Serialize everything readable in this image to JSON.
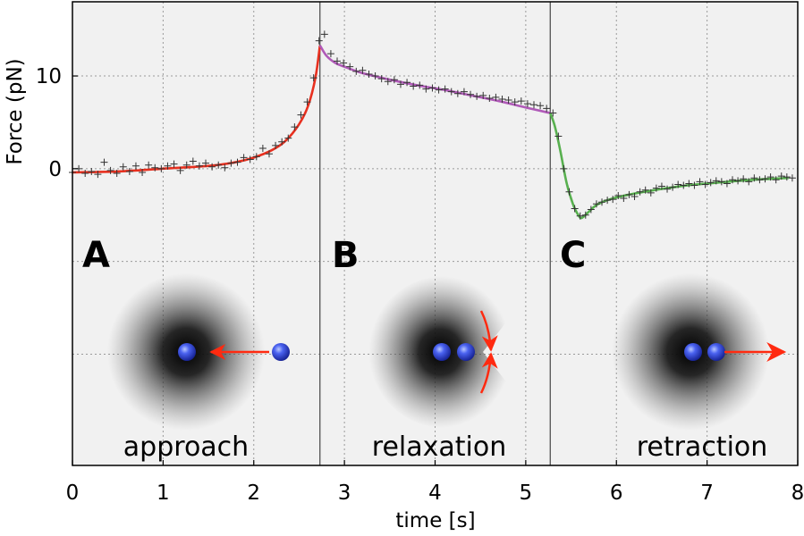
{
  "chart_data": {
    "type": "line",
    "xlabel": "time [s]",
    "ylabel": "Force (pN)",
    "xlim": [
      0,
      8
    ],
    "ylim": [
      -32,
      18
    ],
    "x_ticks": [
      0,
      1,
      2,
      3,
      4,
      5,
      6,
      7,
      8
    ],
    "y_ticks": [
      0,
      10
    ],
    "grid": true,
    "phase_boundaries": [
      2.73,
      5.27
    ],
    "panels": [
      {
        "letter": "A",
        "caption": "approach"
      },
      {
        "letter": "B",
        "caption": "relaxation"
      },
      {
        "letter": "C",
        "caption": "retraction"
      }
    ],
    "series": [
      {
        "style": "markers",
        "marker": "+",
        "color": "#333333",
        "x": [
          0.0,
          0.07,
          0.14,
          0.21,
          0.28,
          0.35,
          0.42,
          0.49,
          0.56,
          0.63,
          0.7,
          0.77,
          0.84,
          0.91,
          0.98,
          1.05,
          1.12,
          1.19,
          1.26,
          1.33,
          1.4,
          1.47,
          1.54,
          1.61,
          1.68,
          1.75,
          1.82,
          1.89,
          1.96,
          2.03,
          2.1,
          2.17,
          2.24,
          2.31,
          2.38,
          2.45,
          2.52,
          2.59,
          2.66,
          2.72,
          2.78,
          2.85,
          2.92,
          2.99,
          3.06,
          3.13,
          3.2,
          3.27,
          3.34,
          3.41,
          3.48,
          3.55,
          3.62,
          3.69,
          3.76,
          3.83,
          3.9,
          3.97,
          4.04,
          4.11,
          4.18,
          4.25,
          4.32,
          4.39,
          4.46,
          4.53,
          4.6,
          4.67,
          4.74,
          4.81,
          4.88,
          4.95,
          5.02,
          5.09,
          5.16,
          5.23,
          5.3,
          5.36,
          5.42,
          5.48,
          5.54,
          5.6,
          5.66,
          5.72,
          5.78,
          5.84,
          5.9,
          5.96,
          6.02,
          6.08,
          6.14,
          6.2,
          6.26,
          6.32,
          6.38,
          6.44,
          6.5,
          6.56,
          6.62,
          6.68,
          6.74,
          6.8,
          6.86,
          6.92,
          6.98,
          7.04,
          7.1,
          7.16,
          7.22,
          7.28,
          7.34,
          7.4,
          7.46,
          7.52,
          7.58,
          7.64,
          7.7,
          7.76,
          7.82,
          7.88,
          7.94
        ],
        "y": [
          -0.4,
          0.0,
          -0.5,
          -0.3,
          -0.6,
          0.7,
          -0.2,
          -0.5,
          0.2,
          -0.3,
          0.3,
          -0.4,
          0.4,
          0.1,
          0.0,
          0.3,
          0.5,
          -0.2,
          0.4,
          0.8,
          0.3,
          0.6,
          0.2,
          0.4,
          0.1,
          0.6,
          0.7,
          1.2,
          1.0,
          1.3,
          2.2,
          1.6,
          2.5,
          2.9,
          3.3,
          4.5,
          5.8,
          7.2,
          9.8,
          13.8,
          14.5,
          12.4,
          11.6,
          11.4,
          11.0,
          10.5,
          10.6,
          10.2,
          10.0,
          9.7,
          9.4,
          9.6,
          9.1,
          9.3,
          8.9,
          9.0,
          8.6,
          8.7,
          8.5,
          8.6,
          8.3,
          8.1,
          8.3,
          8.0,
          7.8,
          7.9,
          7.6,
          7.7,
          7.5,
          7.4,
          7.2,
          7.3,
          7.0,
          6.9,
          6.8,
          6.5,
          6.0,
          3.5,
          0.0,
          -2.5,
          -4.3,
          -5.1,
          -5.0,
          -4.4,
          -3.8,
          -3.6,
          -3.4,
          -3.3,
          -2.9,
          -3.2,
          -2.8,
          -3.0,
          -2.5,
          -2.3,
          -2.6,
          -2.1,
          -1.9,
          -2.2,
          -2.0,
          -1.7,
          -1.8,
          -1.6,
          -1.8,
          -1.4,
          -1.7,
          -1.5,
          -1.3,
          -1.4,
          -1.6,
          -1.2,
          -1.3,
          -1.1,
          -1.4,
          -1.0,
          -1.2,
          -1.1,
          -0.9,
          -1.2,
          -0.8,
          -0.9,
          -1.0
        ]
      },
      {
        "style": "line",
        "color": "#e8301f",
        "x": [
          0.0,
          0.5,
          1.0,
          1.5,
          1.8,
          2.0,
          2.2,
          2.35,
          2.5,
          2.6,
          2.68,
          2.73
        ],
        "y": [
          -0.4,
          -0.3,
          0.0,
          0.3,
          0.7,
          1.2,
          2.0,
          3.0,
          4.8,
          6.8,
          9.8,
          13.3
        ]
      },
      {
        "style": "line",
        "color": "#b05ab8",
        "x": [
          2.73,
          2.8,
          2.9,
          3.0,
          3.2,
          3.5,
          3.8,
          4.1,
          4.4,
          4.7,
          5.0,
          5.27
        ],
        "y": [
          13.3,
          12.2,
          11.4,
          11.0,
          10.3,
          9.6,
          9.0,
          8.5,
          7.9,
          7.3,
          6.6,
          6.0
        ]
      },
      {
        "style": "line",
        "color": "#58b04f",
        "x": [
          5.27,
          5.32,
          5.38,
          5.45,
          5.52,
          5.58,
          5.62,
          5.7,
          5.8,
          6.0,
          6.3,
          6.7,
          7.0,
          7.5,
          7.9
        ],
        "y": [
          6.0,
          4.6,
          2.0,
          -1.5,
          -3.8,
          -5.0,
          -5.3,
          -4.6,
          -3.8,
          -3.1,
          -2.5,
          -1.9,
          -1.6,
          -1.2,
          -1.0
        ]
      }
    ]
  }
}
